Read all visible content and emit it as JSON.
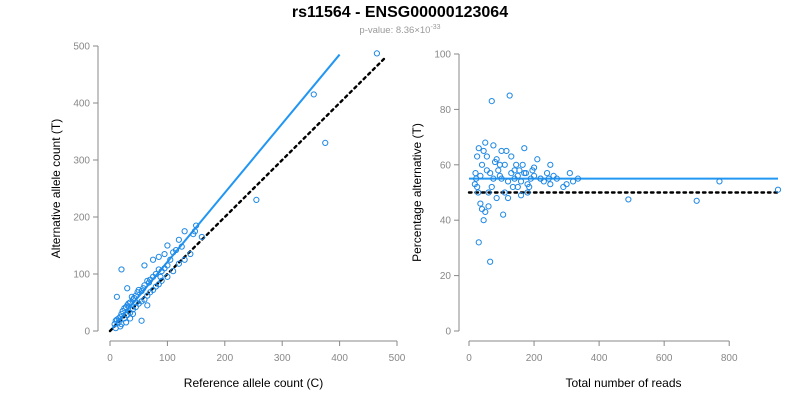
{
  "title": "rs11564 - ENSG00000123064",
  "subtitle": {
    "prefix": "p-value: 8.36×10",
    "exponent": "-33"
  },
  "colors": {
    "points": "#1e88e5",
    "fit_line": "#2196f3",
    "reference_line": "#000000",
    "axis": "#888888"
  },
  "chart_data": [
    {
      "type": "scatter",
      "xlabel": "Reference allele count (C)",
      "ylabel": "Alternative allele count (T)",
      "xlim": [
        0,
        500
      ],
      "ylim": [
        0,
        500
      ],
      "xticks": [
        "0",
        "100",
        "200",
        "300",
        "400",
        "500"
      ],
      "yticks": [
        "0",
        "100",
        "200",
        "300",
        "400",
        "500"
      ],
      "lines": [
        {
          "style": "solid",
          "x": [
            0,
            400
          ],
          "y": [
            0,
            485
          ]
        },
        {
          "style": "dotted",
          "x": [
            0,
            480
          ],
          "y": [
            0,
            480
          ]
        }
      ],
      "points": [
        [
          465,
          487
        ],
        [
          355,
          415
        ],
        [
          375,
          330
        ],
        [
          255,
          230
        ],
        [
          150,
          185
        ],
        [
          148,
          175
        ],
        [
          145,
          170
        ],
        [
          130,
          175
        ],
        [
          120,
          160
        ],
        [
          125,
          148
        ],
        [
          115,
          142
        ],
        [
          110,
          138
        ],
        [
          100,
          150
        ],
        [
          105,
          125
        ],
        [
          100,
          115
        ],
        [
          95,
          110
        ],
        [
          90,
          105
        ],
        [
          85,
          108
        ],
        [
          88,
          95
        ],
        [
          80,
          100
        ],
        [
          75,
          95
        ],
        [
          70,
          90
        ],
        [
          68,
          85
        ],
        [
          65,
          88
        ],
        [
          60,
          80
        ],
        [
          58,
          75
        ],
        [
          55,
          70
        ],
        [
          50,
          72
        ],
        [
          48,
          68
        ],
        [
          45,
          62
        ],
        [
          42,
          58
        ],
        [
          40,
          55
        ],
        [
          38,
          60
        ],
        [
          35,
          50
        ],
        [
          32,
          48
        ],
        [
          30,
          45
        ],
        [
          28,
          42
        ],
        [
          25,
          40
        ],
        [
          22,
          35
        ],
        [
          20,
          30
        ],
        [
          18,
          25
        ],
        [
          15,
          22
        ],
        [
          12,
          20
        ],
        [
          10,
          18
        ],
        [
          8,
          12
        ],
        [
          15,
          15
        ],
        [
          20,
          12
        ],
        [
          25,
          22
        ],
        [
          30,
          28
        ],
        [
          35,
          32
        ],
        [
          40,
          38
        ],
        [
          45,
          42
        ],
        [
          50,
          48
        ],
        [
          55,
          52
        ],
        [
          60,
          55
        ],
        [
          65,
          62
        ],
        [
          70,
          68
        ],
        [
          75,
          72
        ],
        [
          80,
          78
        ],
        [
          85,
          82
        ],
        [
          90,
          88
        ],
        [
          100,
          95
        ],
        [
          110,
          105
        ],
        [
          120,
          118
        ],
        [
          130,
          125
        ],
        [
          140,
          135
        ],
        [
          20,
          108
        ],
        [
          55,
          18
        ],
        [
          60,
          115
        ],
        [
          75,
          125
        ],
        [
          12,
          60
        ],
        [
          30,
          75
        ],
        [
          85,
          130
        ],
        [
          95,
          135
        ],
        [
          160,
          165
        ],
        [
          40,
          30
        ],
        [
          65,
          45
        ],
        [
          10,
          5
        ],
        [
          18,
          8
        ],
        [
          28,
          15
        ],
        [
          35,
          22
        ],
        [
          45,
          50
        ]
      ]
    },
    {
      "type": "scatter",
      "xlabel": "Total number of reads",
      "ylabel": "Percentage alternative (T)",
      "xlim": [
        0,
        950
      ],
      "ylim": [
        0,
        100
      ],
      "xticks": [
        "0",
        "200",
        "400",
        "600",
        "800"
      ],
      "yticks": [
        "0",
        "20",
        "40",
        "60",
        "80",
        "100"
      ],
      "lines": [
        {
          "style": "solid",
          "x": [
            0,
            950
          ],
          "y": [
            55,
            55
          ]
        },
        {
          "style": "dotted",
          "x": [
            0,
            950
          ],
          "y": [
            50,
            50
          ]
        }
      ],
      "points": [
        [
          950,
          51
        ],
        [
          770,
          54
        ],
        [
          700,
          47
        ],
        [
          490,
          47.5
        ],
        [
          335,
          55
        ],
        [
          320,
          54
        ],
        [
          310,
          57
        ],
        [
          300,
          53
        ],
        [
          290,
          52
        ],
        [
          270,
          55
        ],
        [
          260,
          56
        ],
        [
          250,
          60
        ],
        [
          245,
          55
        ],
        [
          240,
          57
        ],
        [
          230,
          54
        ],
        [
          220,
          55
        ],
        [
          210,
          62
        ],
        [
          200,
          56
        ],
        [
          195,
          58
        ],
        [
          190,
          55
        ],
        [
          185,
          52
        ],
        [
          180,
          50
        ],
        [
          175,
          57
        ],
        [
          170,
          66
        ],
        [
          165,
          60
        ],
        [
          160,
          54
        ],
        [
          155,
          58
        ],
        [
          150,
          56
        ],
        [
          145,
          60
        ],
        [
          140,
          55
        ],
        [
          135,
          52
        ],
        [
          130,
          57
        ],
        [
          125,
          85
        ],
        [
          120,
          54
        ],
        [
          115,
          65
        ],
        [
          110,
          50
        ],
        [
          105,
          42
        ],
        [
          100,
          55
        ],
        [
          95,
          60
        ],
        [
          90,
          58
        ],
        [
          85,
          48
        ],
        [
          80,
          61
        ],
        [
          75,
          55
        ],
        [
          70,
          83
        ],
        [
          65,
          25
        ],
        [
          60,
          45
        ],
        [
          55,
          58
        ],
        [
          50,
          43
        ],
        [
          45,
          40
        ],
        [
          40,
          44
        ],
        [
          35,
          46
        ],
        [
          30,
          32
        ],
        [
          28,
          50
        ],
        [
          25,
          52
        ],
        [
          22,
          55
        ],
        [
          20,
          57
        ],
        [
          18,
          53
        ],
        [
          25,
          63
        ],
        [
          30,
          66
        ],
        [
          35,
          56
        ],
        [
          40,
          60
        ],
        [
          45,
          65
        ],
        [
          50,
          68
        ],
        [
          55,
          63
        ],
        [
          60,
          50
        ],
        [
          65,
          57
        ],
        [
          70,
          52
        ],
        [
          75,
          67
        ],
        [
          85,
          62
        ],
        [
          95,
          56
        ],
        [
          100,
          65
        ],
        [
          110,
          60
        ],
        [
          120,
          48
        ],
        [
          130,
          63
        ],
        [
          140,
          58
        ],
        [
          150,
          52
        ],
        [
          160,
          49
        ],
        [
          170,
          57
        ],
        [
          180,
          53
        ],
        [
          200,
          59
        ],
        [
          220,
          55
        ],
        [
          250,
          53
        ]
      ]
    }
  ]
}
